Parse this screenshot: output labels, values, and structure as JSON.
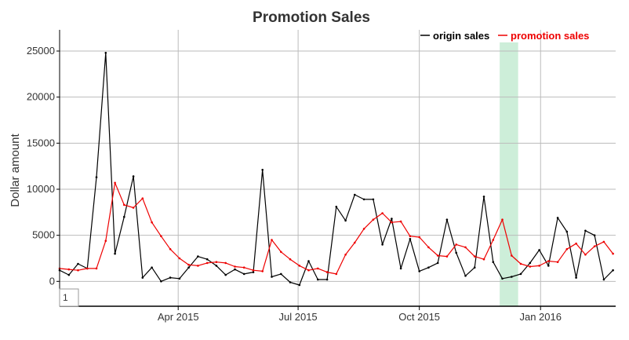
{
  "chart_data": {
    "type": "line",
    "title": "Promotion Sales",
    "ylabel": "Dollar amount",
    "xlabel": "",
    "ylim": [
      -2700,
      27300
    ],
    "xlim": [
      "2015-01-01",
      "2016-02-27"
    ],
    "yticks": [
      0,
      5000,
      10000,
      15000,
      20000,
      25000
    ],
    "xticks": [
      {
        "date": "2015-04-01",
        "label": "Apr 2015"
      },
      {
        "date": "2015-07-01",
        "label": "Jul 2015"
      },
      {
        "date": "2015-10-01",
        "label": "Oct 2015"
      },
      {
        "date": "2016-01-01",
        "label": "Jan 2016"
      }
    ],
    "grid": true,
    "legend_position": "top-right",
    "highlight": {
      "start": "2015-12-01",
      "end": "2015-12-15",
      "color": "#cdeed9"
    },
    "page_box_label": "1",
    "x": [
      "2015-01-01",
      "2015-01-08",
      "2015-01-15",
      "2015-01-22",
      "2015-01-29",
      "2015-02-05",
      "2015-02-12",
      "2015-02-19",
      "2015-02-26",
      "2015-03-05",
      "2015-03-12",
      "2015-03-19",
      "2015-03-26",
      "2015-04-02",
      "2015-04-09",
      "2015-04-16",
      "2015-04-23",
      "2015-04-30",
      "2015-05-07",
      "2015-05-14",
      "2015-05-21",
      "2015-05-28",
      "2015-06-04",
      "2015-06-11",
      "2015-06-18",
      "2015-06-25",
      "2015-07-02",
      "2015-07-09",
      "2015-07-16",
      "2015-07-23",
      "2015-07-30",
      "2015-08-06",
      "2015-08-13",
      "2015-08-20",
      "2015-08-27",
      "2015-09-03",
      "2015-09-10",
      "2015-09-17",
      "2015-09-24",
      "2015-10-01",
      "2015-10-08",
      "2015-10-15",
      "2015-10-22",
      "2015-10-29",
      "2015-11-05",
      "2015-11-12",
      "2015-11-19",
      "2015-11-26",
      "2015-12-03",
      "2015-12-10",
      "2015-12-17",
      "2015-12-24",
      "2015-12-31",
      "2016-01-07",
      "2016-01-14",
      "2016-01-21",
      "2016-01-28",
      "2016-02-04",
      "2016-02-11",
      "2016-02-18",
      "2016-02-25"
    ],
    "series": [
      {
        "name": "origin sales",
        "color": "#000000",
        "values": [
          1200,
          700,
          1900,
          1400,
          11300,
          24800,
          3000,
          7000,
          11400,
          400,
          1500,
          0,
          400,
          300,
          1500,
          2700,
          2400,
          1700,
          700,
          1300,
          800,
          1000,
          12100,
          500,
          800,
          -100,
          -400,
          2200,
          200,
          200,
          8100,
          6600,
          9400,
          8900,
          8900,
          4000,
          6800,
          1400,
          4600,
          1100,
          1500,
          2000,
          6700,
          3100,
          600,
          1500,
          9200,
          2100,
          300,
          500,
          800,
          2000,
          3400,
          1700,
          6900,
          5400,
          400,
          5500,
          5000,
          200,
          1200
        ]
      },
      {
        "name": "promotion sales",
        "color": "#ee0000",
        "values": [
          1400,
          1300,
          1200,
          1400,
          1400,
          4400,
          10700,
          8300,
          8000,
          9000,
          6400,
          4900,
          3500,
          2500,
          1800,
          1700,
          2000,
          2100,
          2000,
          1600,
          1500,
          1200,
          1100,
          4500,
          3200,
          2400,
          1700,
          1200,
          1400,
          1000,
          800,
          2900,
          4200,
          5700,
          6700,
          7400,
          6400,
          6500,
          4900,
          4800,
          3700,
          2800,
          2700,
          4000,
          3700,
          2700,
          2400,
          4500,
          6700,
          2800,
          1900,
          1600,
          1700,
          2200,
          2100,
          3500,
          4100,
          2900,
          3800,
          4300,
          3000
        ]
      }
    ]
  }
}
